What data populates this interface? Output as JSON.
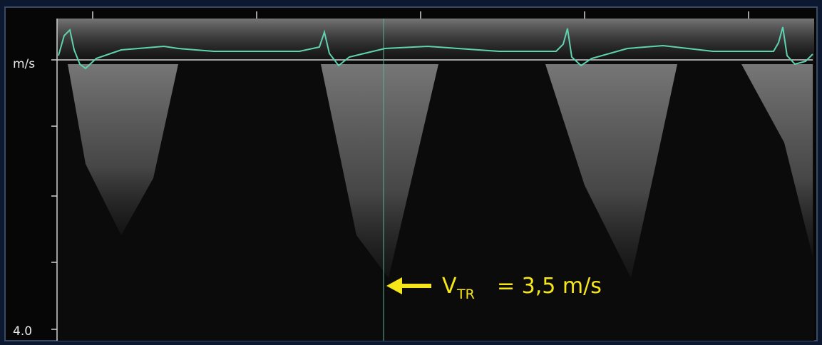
{
  "axis": {
    "unit": "m/s",
    "bottom_label": "4.0"
  },
  "annotation": {
    "symbol": "V",
    "subscript": "TR",
    "text": "= 3,5 m/s"
  }
}
